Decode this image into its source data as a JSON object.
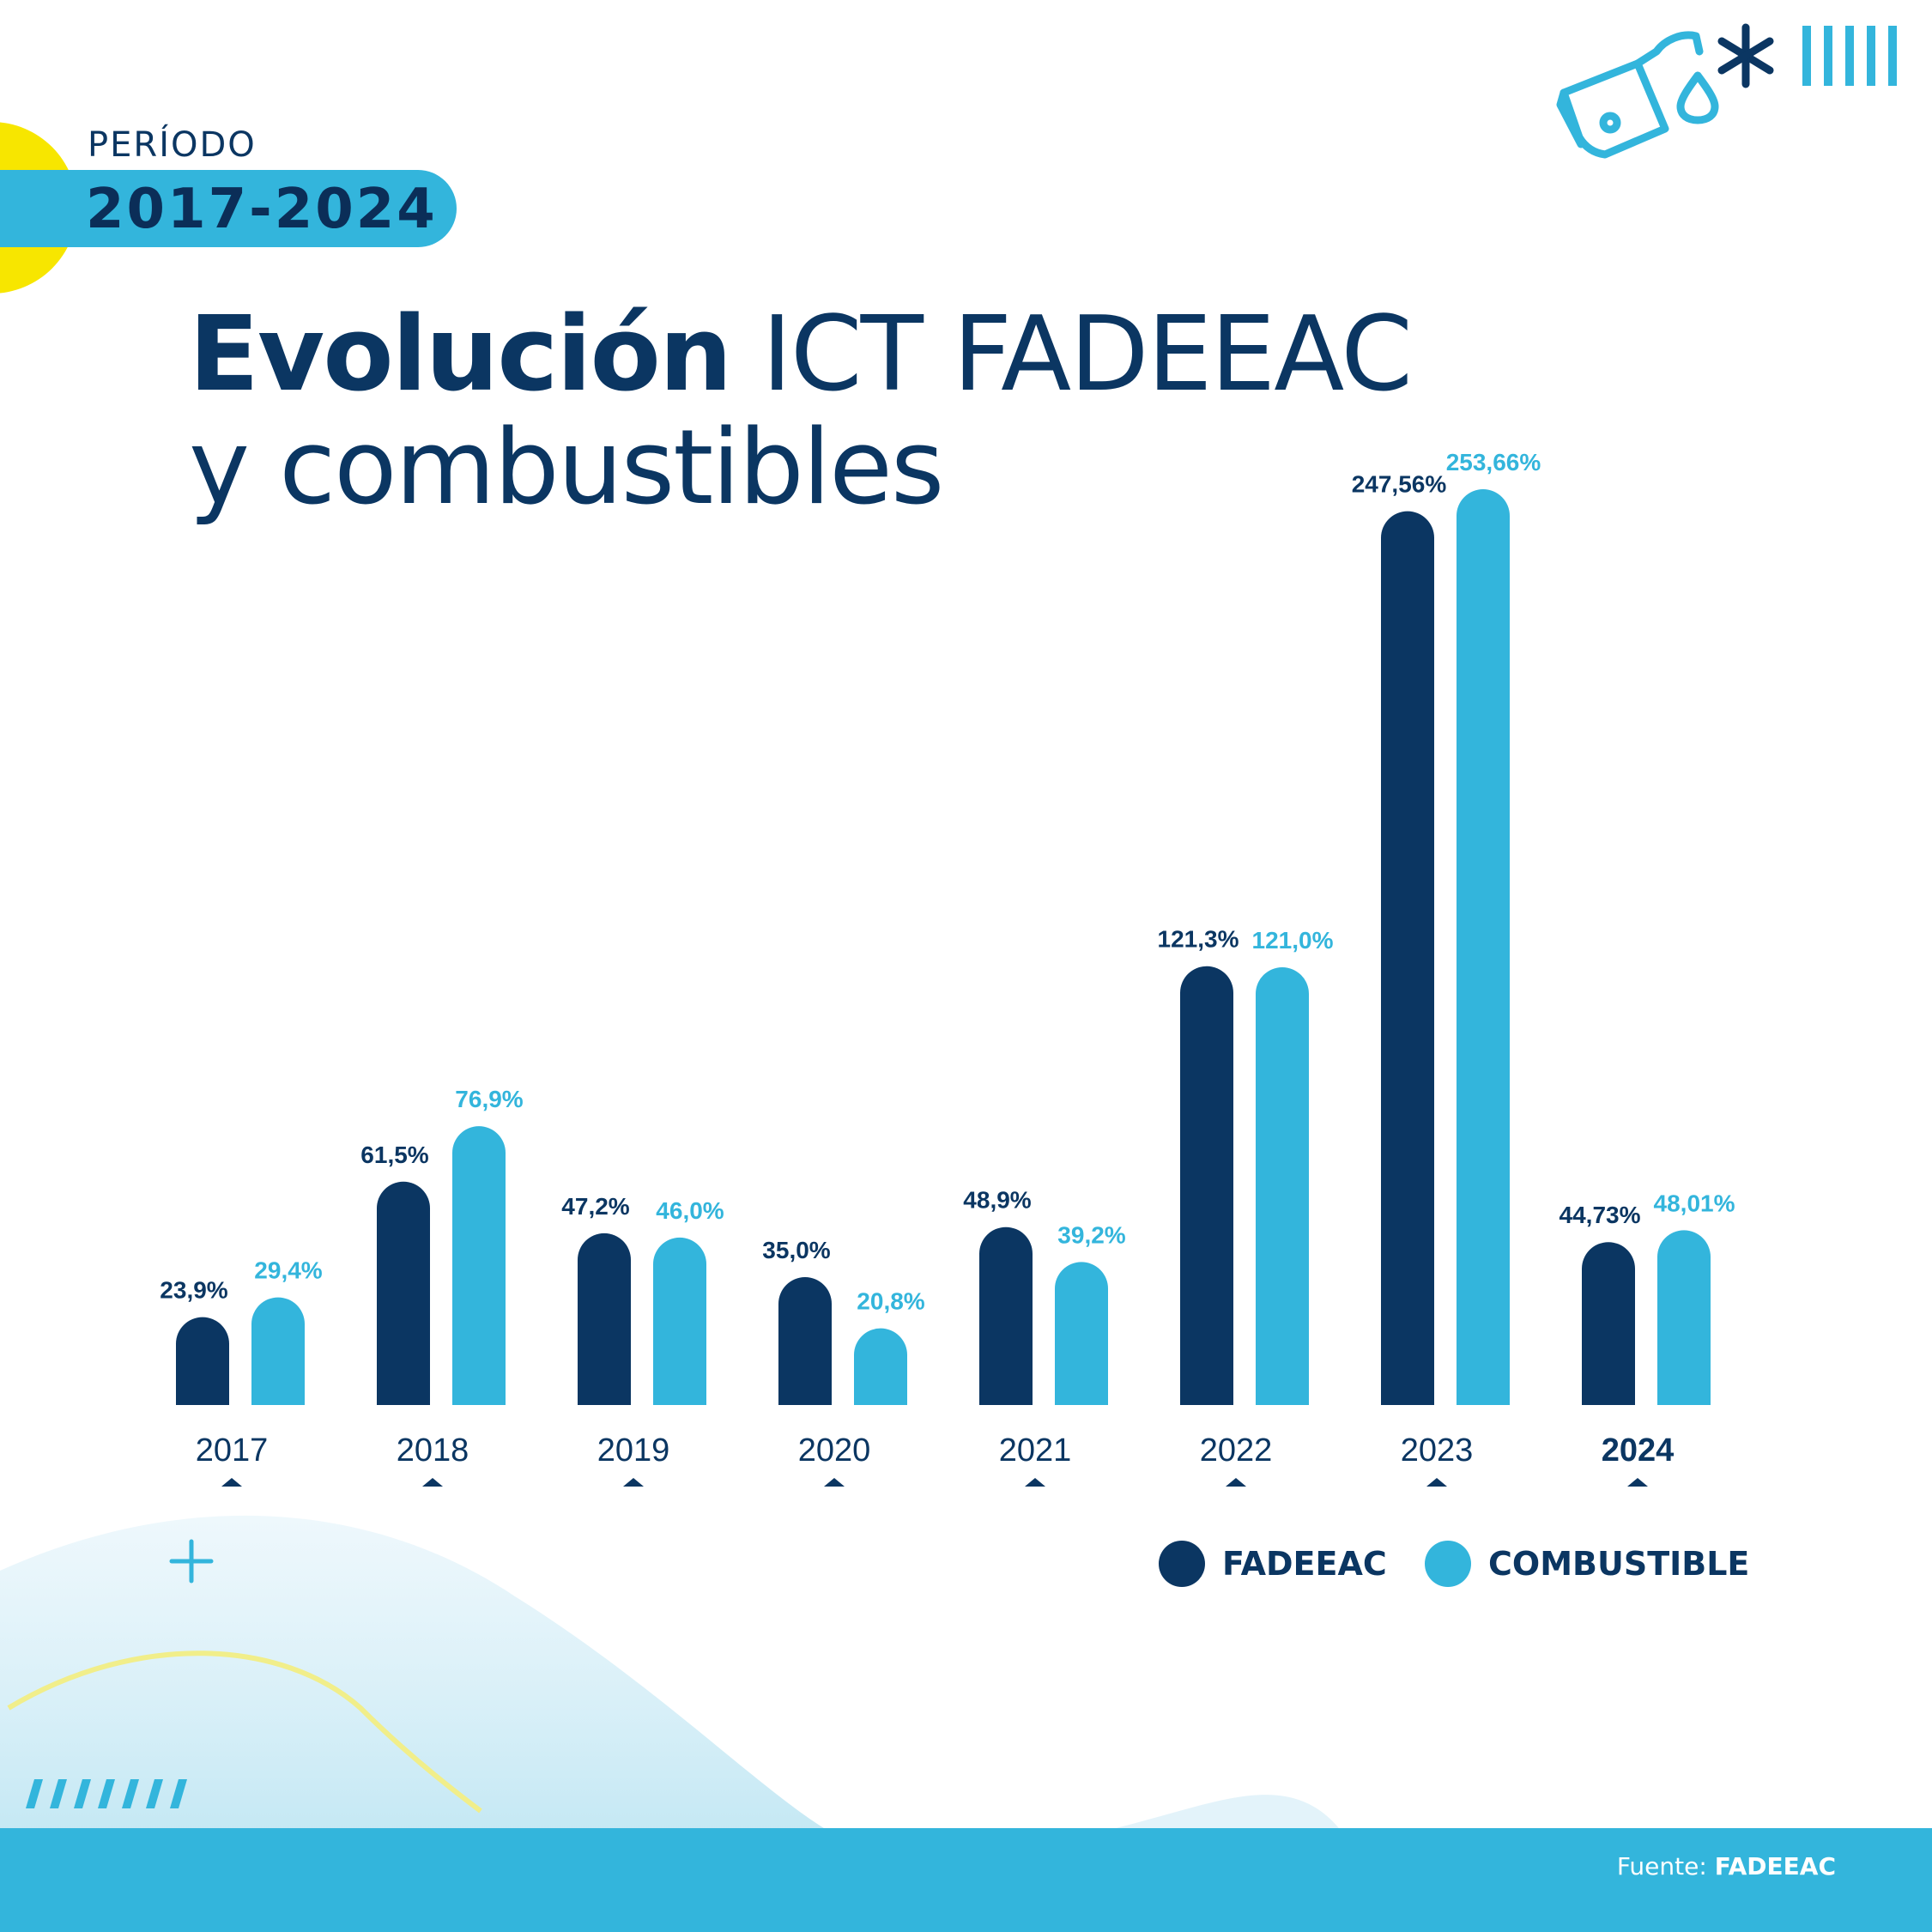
{
  "period": {
    "label": "PERÍODO",
    "value": "2017-2024"
  },
  "title": {
    "bold": "Evolución",
    "rest": " ICT FADEEAC",
    "line2": "y combustibles"
  },
  "legend": [
    {
      "label": "FADEEAC",
      "color": "#0b3662"
    },
    {
      "label": "COMBUSTIBLE",
      "color": "#33b5dc"
    }
  ],
  "source": {
    "prefix": "Fuente:",
    "name": "FADEEAC"
  },
  "icons": [
    "fuel-nozzle-icon",
    "asterisk-icon",
    "stripes-icon",
    "plus-icon",
    "slashes-icon"
  ],
  "colors": {
    "fadeeac": "#0b3662",
    "combustible": "#33b5dc",
    "accent_yellow": "#f7e600"
  },
  "chart_data": {
    "type": "bar",
    "categories": [
      "2017",
      "2018",
      "2019",
      "2020",
      "2021",
      "2022",
      "2023",
      "2024"
    ],
    "highlight_category": "2024",
    "series": [
      {
        "name": "FADEEAC",
        "values": [
          23.9,
          61.5,
          47.2,
          35.0,
          48.9,
          121.3,
          247.56,
          44.73
        ],
        "labels": [
          "23,9%",
          "61,5%",
          "47,2%",
          "35,0%",
          "48,9%",
          "121,3%",
          "247,56%",
          "44,73%"
        ]
      },
      {
        "name": "COMBUSTIBLE",
        "values": [
          29.4,
          76.9,
          46.0,
          20.8,
          39.2,
          121.0,
          253.66,
          48.01
        ],
        "labels": [
          "29,4%",
          "76,9%",
          "46,0%",
          "20,8%",
          "39,2%",
          "121,0%",
          "253,66%",
          "48,01%"
        ]
      }
    ],
    "title": "Evolución ICT FADEEAC y combustibles",
    "xlabel": "",
    "ylabel": "",
    "grid": false,
    "legend_position": "bottom-right"
  }
}
